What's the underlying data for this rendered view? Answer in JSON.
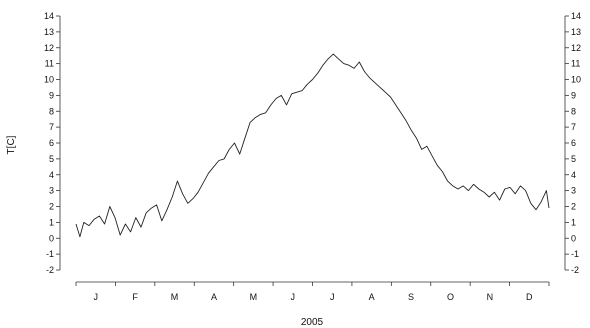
{
  "chart_data": {
    "type": "line",
    "title": "",
    "xlabel": "2005",
    "ylabel": "T[C]",
    "ylim": [
      -2,
      14
    ],
    "yticks": [
      "-2",
      "-1",
      "0",
      "1",
      "2",
      "3",
      "4",
      "5",
      "6",
      "7",
      "8",
      "9",
      "10",
      "11",
      "12",
      "13",
      "14"
    ],
    "months": [
      "J",
      "F",
      "M",
      "A",
      "M",
      "J",
      "J",
      "A",
      "S",
      "O",
      "N",
      "D"
    ],
    "grid": false,
    "legend": "none",
    "line_color": "#222222",
    "series": [
      {
        "x": [
          0,
          3,
          6,
          10,
          14,
          18,
          22,
          26,
          30,
          34,
          38,
          42,
          46,
          50,
          54,
          58,
          62,
          66,
          70,
          74,
          78,
          82,
          86,
          90,
          94,
          98,
          102,
          106,
          110,
          114,
          118,
          122,
          126,
          130,
          134,
          138,
          142,
          146,
          150,
          154,
          158,
          162,
          166,
          170,
          174,
          178,
          182,
          186,
          190,
          194,
          198,
          202,
          206,
          210,
          214,
          218,
          222,
          226,
          230,
          234,
          238,
          242,
          246,
          250,
          254,
          258,
          262,
          266,
          270,
          274,
          278,
          282,
          286,
          290,
          294,
          298,
          302,
          306,
          310,
          314,
          318,
          322,
          326,
          330,
          334,
          338,
          342,
          346,
          350,
          354,
          358,
          362,
          364
        ],
        "values": [
          0.9,
          0.1,
          1.0,
          0.8,
          1.2,
          1.4,
          0.9,
          2.0,
          1.3,
          0.2,
          0.9,
          0.4,
          1.3,
          0.7,
          1.6,
          1.9,
          2.1,
          1.1,
          1.8,
          2.6,
          3.6,
          2.8,
          2.2,
          2.5,
          2.9,
          3.5,
          4.1,
          4.5,
          4.9,
          5.0,
          5.6,
          6.0,
          5.3,
          6.3,
          7.3,
          7.6,
          7.8,
          7.9,
          8.4,
          8.8,
          9.0,
          8.4,
          9.1,
          9.2,
          9.3,
          9.7,
          10.0,
          10.4,
          10.9,
          11.3,
          11.6,
          11.3,
          11.0,
          10.9,
          10.7,
          11.1,
          10.5,
          10.1,
          9.8,
          9.5,
          9.2,
          8.9,
          8.4,
          7.9,
          7.4,
          6.8,
          6.3,
          5.6,
          5.8,
          5.2,
          4.6,
          4.2,
          3.6,
          3.3,
          3.1,
          3.3,
          3.0,
          3.4,
          3.1,
          2.9,
          2.6,
          2.9,
          2.4,
          3.1,
          3.2,
          2.8,
          3.3,
          3.0,
          2.2,
          1.8,
          2.3,
          3.0,
          1.9
        ]
      }
    ]
  }
}
